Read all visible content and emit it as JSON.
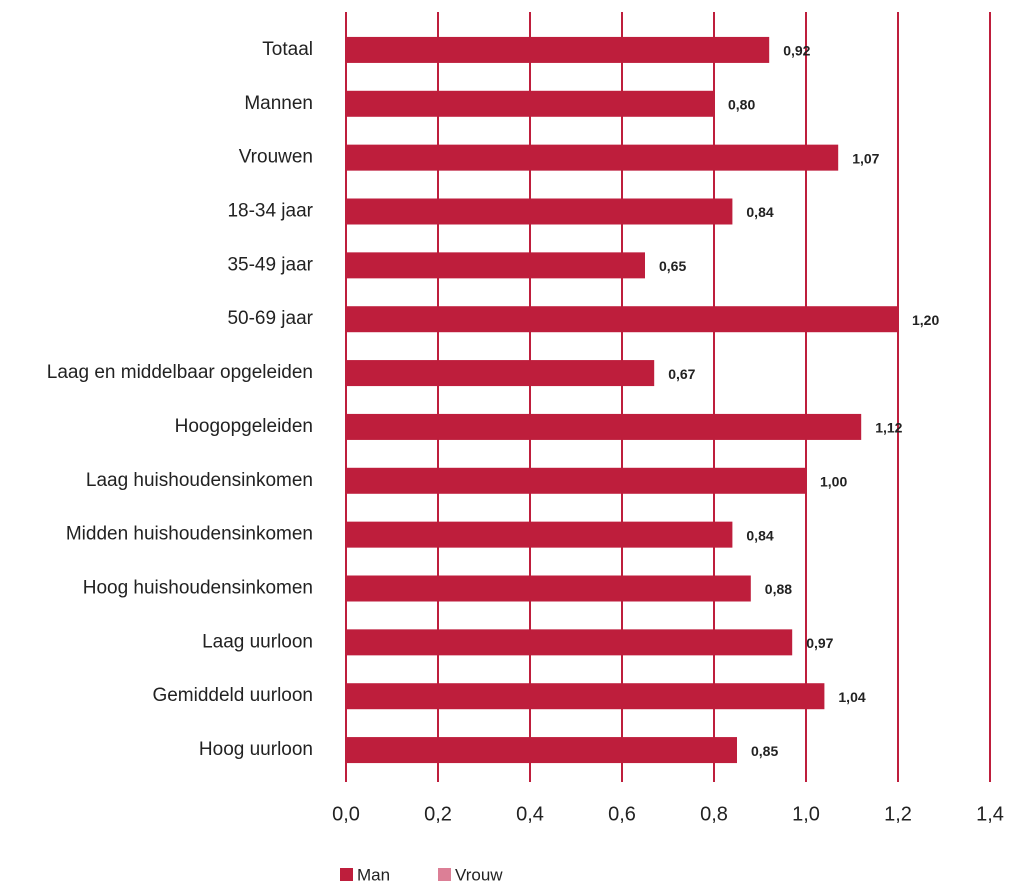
{
  "chart_data": {
    "type": "barh",
    "categories": [
      "Totaal",
      "Mannen",
      "Vrouwen",
      "18-34 jaar",
      "35-49 jaar",
      "50-69 jaar",
      "Laag en middelbaar opgeleiden",
      "Hoogopgeleiden",
      "Laag huishoudensinkomen",
      "Midden huishoudensinkomen",
      "Hoog huishoudensinkomen",
      "Laag uurloon",
      "Gemiddeld uurloon",
      "Hoog uurloon"
    ],
    "series": [
      {
        "name": "Man",
        "color": "#be1e3c",
        "values": [
          0.92,
          0.8,
          1.07,
          0.84,
          0.65,
          1.2,
          0.67,
          1.12,
          1.0,
          0.84,
          0.88,
          0.97,
          1.04,
          0.85
        ],
        "value_labels": [
          "0,92",
          "0,80",
          "1,07",
          "0,84",
          "0,65",
          "1,20",
          "0,67",
          "1,12",
          "1,00",
          "0,84",
          "0,88",
          "0,97",
          "1,04",
          "0,85"
        ]
      },
      {
        "name": "Vrouw",
        "color": "#dc7f96",
        "values": [
          null,
          null,
          null,
          null,
          null,
          null,
          null,
          null,
          null,
          null,
          null,
          null,
          null,
          null
        ]
      }
    ],
    "xlim": [
      0,
      1.4
    ],
    "xticks": [
      {
        "value": 0,
        "label": "0,0"
      },
      {
        "value": 0.2,
        "label": "0,2"
      },
      {
        "value": 0.4,
        "label": "0,4"
      },
      {
        "value": 0.6,
        "label": "0,6"
      },
      {
        "value": 0.8,
        "label": "0,8"
      },
      {
        "value": 1.0,
        "label": "1,0"
      },
      {
        "value": 1.2,
        "label": "1,2"
      },
      {
        "value": 1.4,
        "label": "1,4"
      }
    ],
    "grid": true,
    "legend": "bottom"
  }
}
